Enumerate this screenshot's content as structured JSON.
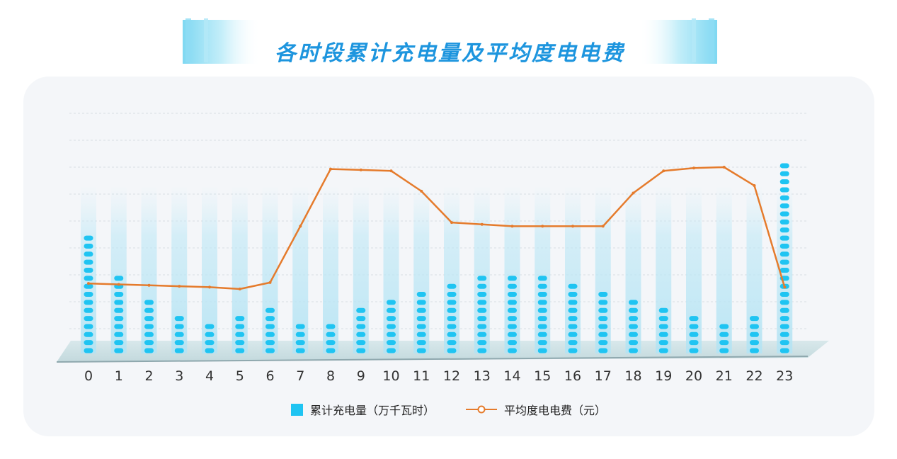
{
  "title": "各时段累计充电量及平均度电电费",
  "colors": {
    "bar": "#1fc4f2",
    "line": "#e57b2c",
    "panel": "#f4f6f9",
    "title": "#1d95de",
    "floor": "#c9dde1"
  },
  "chart_data": {
    "type": "bar",
    "title": "各时段累计充电量及平均度电电费",
    "xlabel": "",
    "ylabel": "",
    "categories": [
      "0",
      "1",
      "2",
      "3",
      "4",
      "5",
      "6",
      "7",
      "8",
      "9",
      "10",
      "11",
      "12",
      "13",
      "14",
      "15",
      "16",
      "17",
      "18",
      "19",
      "20",
      "21",
      "22",
      "23"
    ],
    "series": [
      {
        "name": "累计充电量（万千瓦时）",
        "type": "bar",
        "values": [
          15,
          10,
          7,
          5,
          4,
          5,
          6,
          4,
          4,
          6,
          7,
          8,
          9,
          10,
          10,
          10,
          9,
          8,
          7,
          6,
          5,
          4,
          5,
          24
        ]
      },
      {
        "name": "平均度电电费（元）",
        "type": "line",
        "values": [
          0.47,
          0.465,
          0.46,
          0.455,
          0.45,
          0.44,
          0.475,
          0.78,
          1.09,
          1.085,
          1.08,
          0.97,
          0.8,
          0.79,
          0.78,
          0.78,
          0.78,
          0.78,
          0.96,
          1.08,
          1.095,
          1.1,
          1.0,
          0.45
        ]
      }
    ],
    "grid": true,
    "legend": "bottom"
  }
}
